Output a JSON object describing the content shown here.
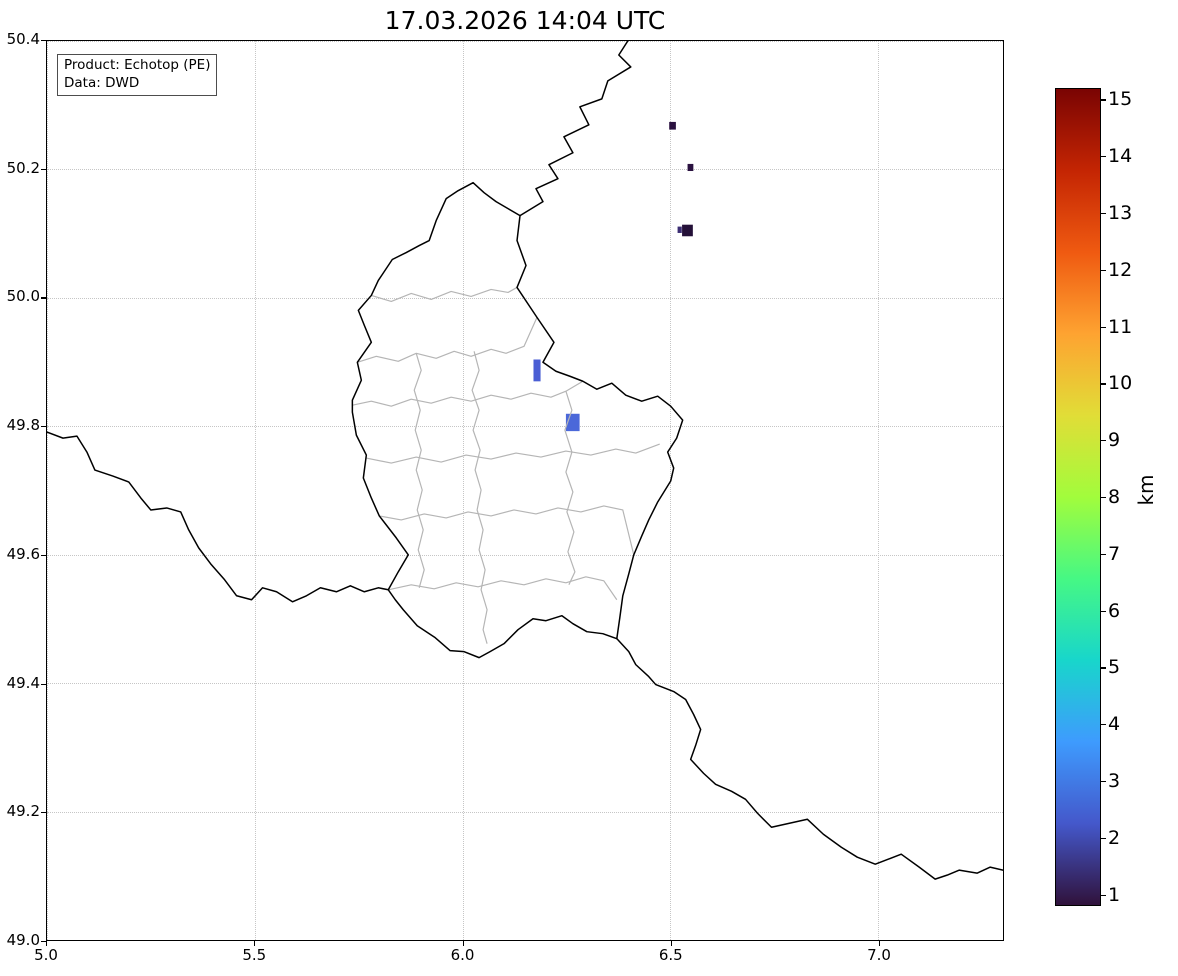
{
  "title": "17.03.2026 14:04 UTC",
  "annotation": {
    "product": "Product: Echotop (PE)",
    "source": "Data: DWD"
  },
  "axes": {
    "x": {
      "range": [
        5.0,
        7.3
      ],
      "ticks": [
        {
          "label": "5.0",
          "value": 5.0
        },
        {
          "label": "5.5",
          "value": 5.5
        },
        {
          "label": "6.0",
          "value": 6.0
        },
        {
          "label": "6.5",
          "value": 6.5
        },
        {
          "label": "7.0",
          "value": 7.0
        }
      ]
    },
    "y": {
      "range": [
        49.0,
        50.4
      ],
      "ticks": [
        {
          "label": "50.4",
          "value": 50.4
        },
        {
          "label": "50.2",
          "value": 50.2
        },
        {
          "label": "50.0",
          "value": 50.0
        },
        {
          "label": "49.8",
          "value": 49.8
        },
        {
          "label": "49.6",
          "value": 49.6
        },
        {
          "label": "49.4",
          "value": 49.4
        },
        {
          "label": "49.2",
          "value": 49.2
        },
        {
          "label": "49.0",
          "value": 49.0
        }
      ]
    }
  },
  "colorbar": {
    "label": "km",
    "vmin": 0.8,
    "vmax": 15.2,
    "ticks": [
      {
        "label": "1",
        "value": 1
      },
      {
        "label": "2",
        "value": 2
      },
      {
        "label": "3",
        "value": 3
      },
      {
        "label": "4",
        "value": 4
      },
      {
        "label": "5",
        "value": 5
      },
      {
        "label": "6",
        "value": 6
      },
      {
        "label": "7",
        "value": 7
      },
      {
        "label": "8",
        "value": 8
      },
      {
        "label": "9",
        "value": 9
      },
      {
        "label": "10",
        "value": 10
      },
      {
        "label": "11",
        "value": 11
      },
      {
        "label": "12",
        "value": 12
      },
      {
        "label": "13",
        "value": 13
      },
      {
        "label": "14",
        "value": 14
      },
      {
        "label": "15",
        "value": 15
      }
    ],
    "gradient": [
      "#30123b",
      "#4458cb",
      "#3e9bfe",
      "#18d6cb",
      "#46f884",
      "#a2fc3c",
      "#e1dd37",
      "#fea331",
      "#ef5a11",
      "#c42503",
      "#7a0403"
    ]
  },
  "chart_data": {
    "type": "heatmap",
    "title": "17.03.2026 14:04 UTC",
    "product": "Echotop (PE)",
    "data_source": "DWD",
    "x_axis": "longitude_deg_east",
    "y_axis": "latitude_deg_north",
    "xlim": [
      5.0,
      7.3
    ],
    "ylim": [
      49.0,
      50.4
    ],
    "unit": "km",
    "colorbar_range": [
      1,
      15
    ],
    "points": [
      {
        "lon": 6.505,
        "lat": 50.268,
        "w": 0.016,
        "h": 0.012,
        "echotop_km": 1,
        "color": "#2a1140"
      },
      {
        "lon": 6.548,
        "lat": 50.203,
        "w": 0.014,
        "h": 0.011,
        "echotop_km": 1,
        "color": "#2a1140"
      },
      {
        "lon": 6.541,
        "lat": 50.105,
        "w": 0.026,
        "h": 0.018,
        "echotop_km": 1,
        "color": "#241038"
      },
      {
        "lon": 6.522,
        "lat": 50.106,
        "w": 0.01,
        "h": 0.01,
        "echotop_km": 2,
        "color": "#3b2d73"
      },
      {
        "lon": 6.179,
        "lat": 49.887,
        "w": 0.017,
        "h": 0.034,
        "echotop_km": 3,
        "color": "#4a5ed4"
      },
      {
        "lon": 6.265,
        "lat": 49.806,
        "w": 0.033,
        "h": 0.027,
        "echotop_km": 3,
        "color": "#4b68d9"
      }
    ]
  }
}
